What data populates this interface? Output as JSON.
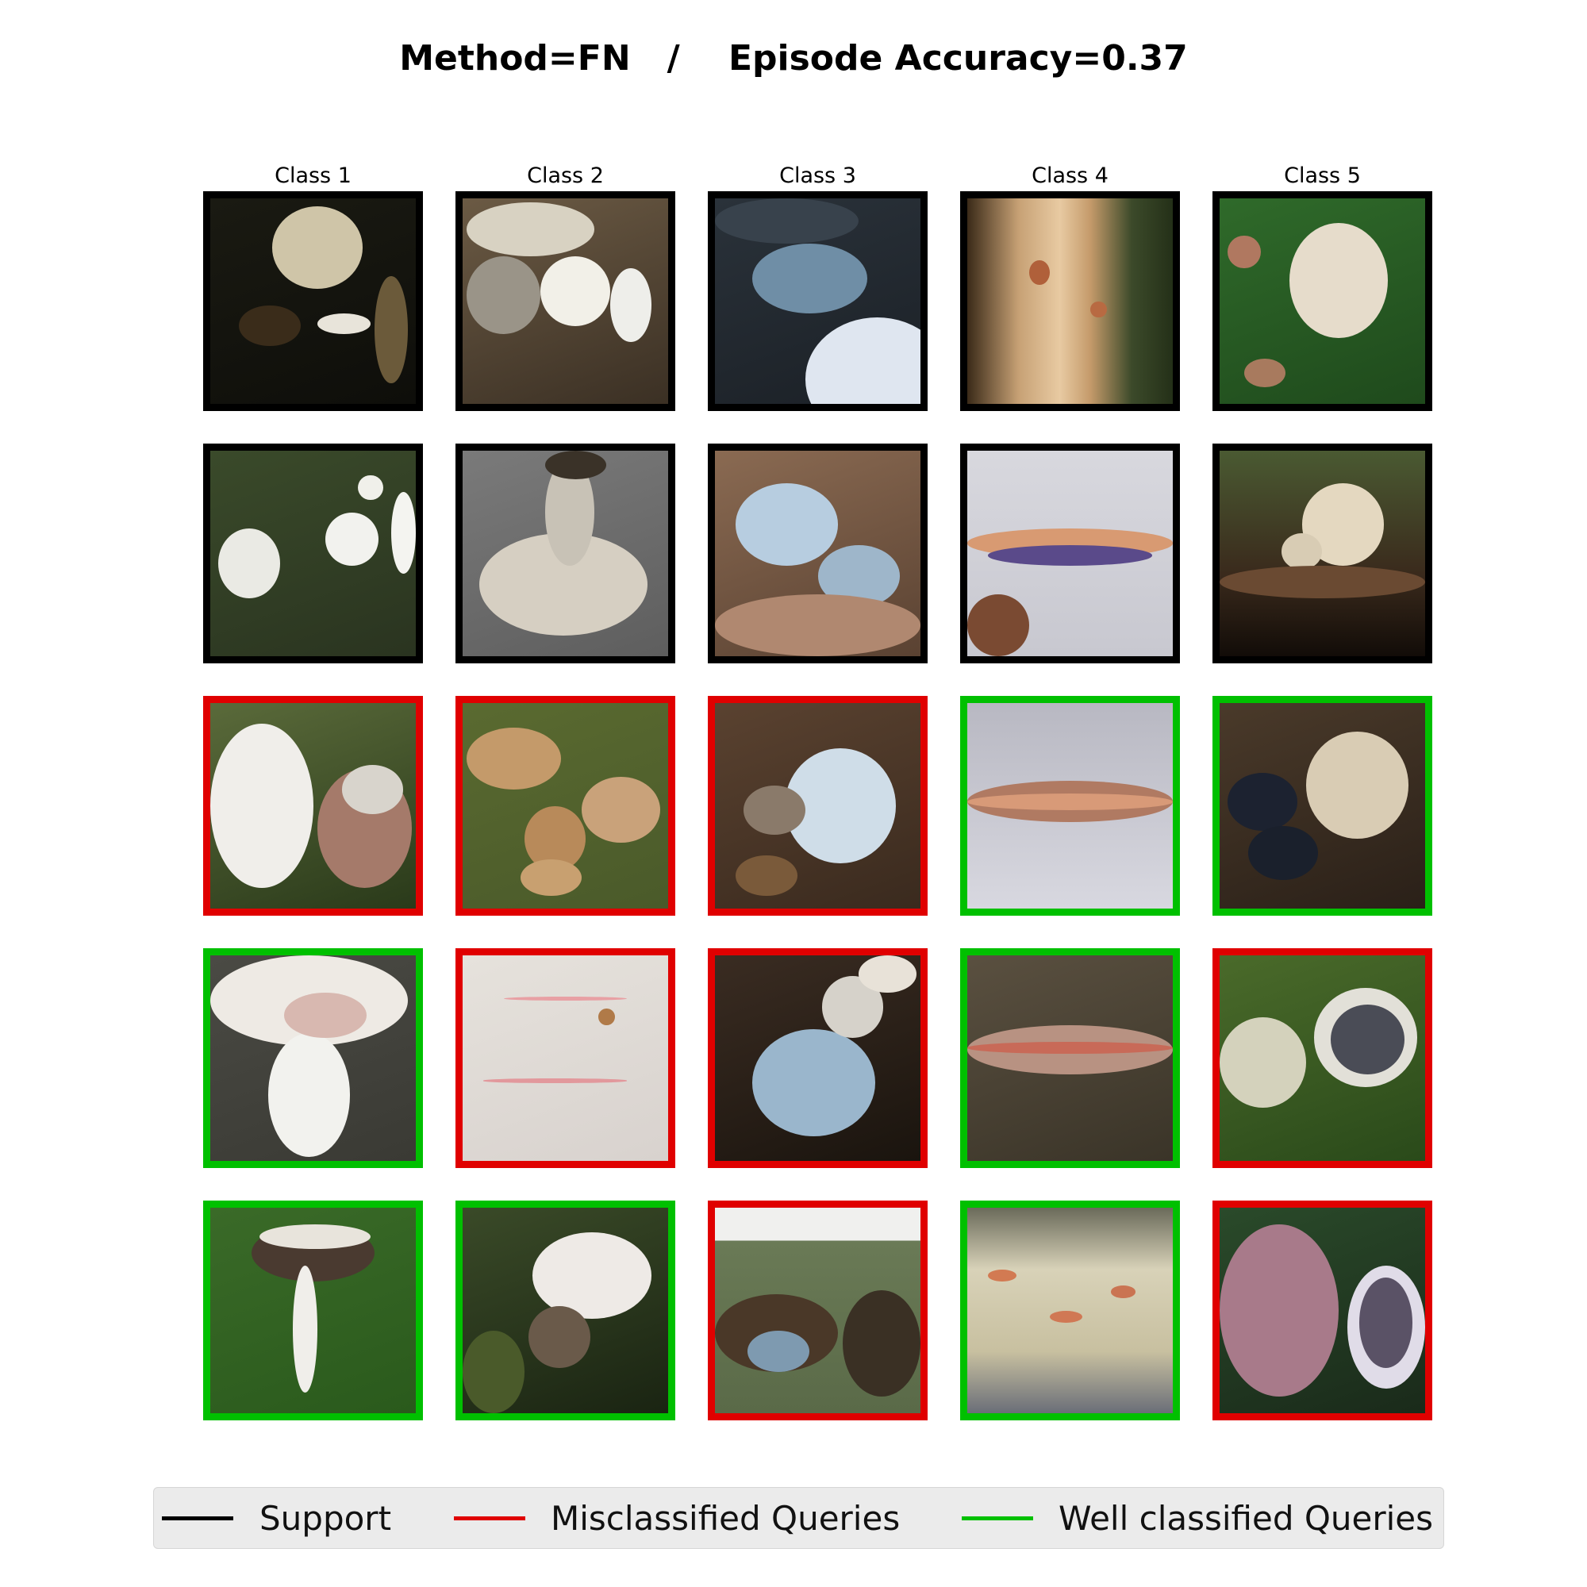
{
  "title": "Method=FN   /    Episode Accuracy=0.37",
  "columns": [
    "Class 1",
    "Class 2",
    "Class 3",
    "Class 4",
    "Class 5"
  ],
  "status_colors": {
    "support": "#000000",
    "misclassified": "#e00000",
    "well": "#00c000"
  },
  "grid": [
    [
      {
        "status": "support",
        "bg": "linear-gradient(160deg,#1a1a12 0%,#0e0e0a 100%)",
        "blobs": [
          [
            "30%",
            "4%",
            "44%",
            "40%",
            "#cfc5a8"
          ],
          [
            "14%",
            "52%",
            "30%",
            "20%",
            "#3a2c1a"
          ],
          [
            "52%",
            "56%",
            "26%",
            "10%",
            "#e8e4da"
          ],
          [
            "80%",
            "38%",
            "16%",
            "52%",
            "#6b5a3a"
          ]
        ]
      },
      {
        "status": "support",
        "bg": "linear-gradient(160deg,#6b5a44 0%,#3b3024 100%)",
        "blobs": [
          [
            "2%",
            "2%",
            "62%",
            "26%",
            "#d8d2c2"
          ],
          [
            "38%",
            "28%",
            "34%",
            "34%",
            "#f2f0e8"
          ],
          [
            "2%",
            "28%",
            "36%",
            "38%",
            "#9a9488"
          ],
          [
            "72%",
            "34%",
            "20%",
            "36%",
            "#eeeeea"
          ]
        ]
      },
      {
        "status": "support",
        "bg": "linear-gradient(160deg,#2a323a 0%,#1b2026 100%)",
        "blobs": [
          [
            "18%",
            "22%",
            "56%",
            "34%",
            "#6f8ea6"
          ],
          [
            "44%",
            "58%",
            "70%",
            "60%",
            "#dfe6f0"
          ],
          [
            "0%",
            "0%",
            "70%",
            "22%",
            "#38424c"
          ]
        ]
      },
      {
        "status": "support",
        "bg": "linear-gradient(90deg,#3a2a18 0%,#c7a175 25%,#e8caa2 45%,#c49a6a 60%,#3c4a2a 80%,#243018 100%)",
        "blobs": [
          [
            "30%",
            "30%",
            "10%",
            "12%",
            "#b0603a"
          ],
          [
            "60%",
            "50%",
            "8%",
            "8%",
            "#b86a42"
          ]
        ]
      },
      {
        "status": "support",
        "bg": "linear-gradient(160deg,#2f6a2a 0%,#1f4a1c 100%)",
        "blobs": [
          [
            "34%",
            "12%",
            "48%",
            "56%",
            "#e6dccb"
          ],
          [
            "4%",
            "18%",
            "16%",
            "16%",
            "#b07860"
          ],
          [
            "12%",
            "78%",
            "20%",
            "14%",
            "#a87a5e"
          ]
        ]
      }
    ],
    [
      {
        "status": "support",
        "bg": "linear-gradient(160deg,#3a4a2a 0%,#2a3420 100%)",
        "blobs": [
          [
            "56%",
            "30%",
            "26%",
            "26%",
            "#f2f2ee"
          ],
          [
            "4%",
            "38%",
            "30%",
            "34%",
            "#eaeae4"
          ],
          [
            "72%",
            "12%",
            "12%",
            "12%",
            "#f0f0ea"
          ],
          [
            "88%",
            "20%",
            "12%",
            "40%",
            "#f4f4f0"
          ]
        ]
      },
      {
        "status": "support",
        "bg": "linear-gradient(160deg,#7a7a7a 0%,#5e5e5e 100%)",
        "blobs": [
          [
            "8%",
            "40%",
            "82%",
            "50%",
            "#d6cfc2"
          ],
          [
            "40%",
            "4%",
            "24%",
            "52%",
            "#c8c2b6"
          ],
          [
            "40%",
            "0%",
            "30%",
            "14%",
            "#3a3228"
          ]
        ]
      },
      {
        "status": "support",
        "bg": "linear-gradient(160deg,#8a6a52 0%,#5a4232 100%)",
        "blobs": [
          [
            "10%",
            "16%",
            "50%",
            "40%",
            "#b7cde0"
          ],
          [
            "50%",
            "46%",
            "40%",
            "30%",
            "#9eb6ca"
          ],
          [
            "0%",
            "70%",
            "100%",
            "30%",
            "#b08870"
          ]
        ]
      },
      {
        "status": "support",
        "bg": "linear-gradient(180deg,#d8d8de 0%,#c8c8d0 100%)",
        "blobs": [
          [
            "0%",
            "38%",
            "100%",
            "14%",
            "#d89a72"
          ],
          [
            "10%",
            "46%",
            "80%",
            "10%",
            "#5a4a8a"
          ],
          [
            "0%",
            "70%",
            "30%",
            "30%",
            "#7a4a32"
          ]
        ]
      },
      {
        "status": "support",
        "bg": "linear-gradient(180deg,#4a5a32 0%,#3a2a1c 60%,#120c08 100%)",
        "blobs": [
          [
            "40%",
            "16%",
            "40%",
            "40%",
            "#e4d8c0"
          ],
          [
            "30%",
            "40%",
            "20%",
            "18%",
            "#d8ccb4"
          ],
          [
            "0%",
            "56%",
            "100%",
            "16%",
            "#6a4a32"
          ]
        ]
      }
    ],
    [
      {
        "status": "misclassified",
        "bg": "linear-gradient(160deg,#5a6a3a 0%,#2a3a1a 100%)",
        "blobs": [
          [
            "0%",
            "10%",
            "50%",
            "80%",
            "#f0eeea"
          ],
          [
            "52%",
            "32%",
            "46%",
            "58%",
            "#a57a6a"
          ],
          [
            "64%",
            "30%",
            "30%",
            "24%",
            "#d8d4cc"
          ]
        ]
      },
      {
        "status": "misclassified",
        "bg": "linear-gradient(160deg,#5a6a30 0%,#4a5a2a 100%)",
        "blobs": [
          [
            "2%",
            "12%",
            "46%",
            "30%",
            "#c49a6a"
          ],
          [
            "58%",
            "36%",
            "38%",
            "32%",
            "#c9a27a"
          ],
          [
            "30%",
            "50%",
            "30%",
            "32%",
            "#b88a5a"
          ],
          [
            "28%",
            "76%",
            "30%",
            "18%",
            "#c8a070"
          ]
        ]
      },
      {
        "status": "misclassified",
        "bg": "linear-gradient(160deg,#5a4230 0%,#3a2a1e 100%)",
        "blobs": [
          [
            "34%",
            "22%",
            "54%",
            "56%",
            "#cfdde8"
          ],
          [
            "14%",
            "40%",
            "30%",
            "24%",
            "#8a7a6a"
          ],
          [
            "10%",
            "74%",
            "30%",
            "20%",
            "#7a5a3a"
          ]
        ]
      },
      {
        "status": "well",
        "bg": "linear-gradient(180deg,#b8b8c2 0%,#d8d8e0 100%)",
        "blobs": [
          [
            "0%",
            "38%",
            "100%",
            "20%",
            "#b07a62"
          ],
          [
            "0%",
            "44%",
            "100%",
            "8%",
            "#d89a78"
          ]
        ]
      },
      {
        "status": "well",
        "bg": "linear-gradient(160deg,#4a3a2a 0%,#2a2018 100%)",
        "blobs": [
          [
            "42%",
            "14%",
            "50%",
            "52%",
            "#d9ccb4"
          ],
          [
            "4%",
            "34%",
            "34%",
            "28%",
            "#1c2230"
          ],
          [
            "14%",
            "60%",
            "34%",
            "26%",
            "#1a202c"
          ]
        ]
      }
    ],
    [
      {
        "status": "well",
        "bg": "linear-gradient(160deg,#4a4a44 0%,#3a3a34 100%)",
        "blobs": [
          [
            "0%",
            "0%",
            "96%",
            "44%",
            "#eeeae4"
          ],
          [
            "28%",
            "38%",
            "40%",
            "60%",
            "#f2f2ee"
          ],
          [
            "36%",
            "18%",
            "40%",
            "22%",
            "#d8b8b0"
          ]
        ]
      },
      {
        "status": "misclassified",
        "bg": "linear-gradient(160deg,#e6e2dc 0%,#d8d2ce 100%)",
        "blobs": [
          [
            "20%",
            "20%",
            "60%",
            "2%",
            "#e8a0a4"
          ],
          [
            "10%",
            "60%",
            "70%",
            "2%",
            "#e2989c"
          ],
          [
            "66%",
            "26%",
            "8%",
            "8%",
            "#b07a48"
          ]
        ]
      },
      {
        "status": "misclassified",
        "bg": "linear-gradient(160deg,#3a2c22 0%,#1a140e 100%)",
        "blobs": [
          [
            "18%",
            "36%",
            "60%",
            "52%",
            "#9ab6cc"
          ],
          [
            "52%",
            "10%",
            "30%",
            "30%",
            "#d6d2ca"
          ],
          [
            "70%",
            "0%",
            "28%",
            "18%",
            "#e8e2d8"
          ]
        ]
      },
      {
        "status": "well",
        "bg": "linear-gradient(160deg,#5a5040 0%,#3a3428 100%)",
        "blobs": [
          [
            "0%",
            "34%",
            "100%",
            "24%",
            "#b89282"
          ],
          [
            "0%",
            "42%",
            "100%",
            "6%",
            "#c86a58"
          ]
        ]
      },
      {
        "status": "misclassified",
        "bg": "linear-gradient(160deg,#4a6a2a 0%,#2a4a1a 100%)",
        "blobs": [
          [
            "46%",
            "16%",
            "50%",
            "48%",
            "#e2e0d8"
          ],
          [
            "54%",
            "24%",
            "36%",
            "34%",
            "#4a4c56"
          ],
          [
            "0%",
            "30%",
            "42%",
            "44%",
            "#d4d2bc"
          ]
        ]
      }
    ],
    [
      {
        "status": "well",
        "bg": "linear-gradient(160deg,#3a6a28 0%,#2a5a1c 100%)",
        "blobs": [
          [
            "20%",
            "8%",
            "60%",
            "28%",
            "#4a3a30"
          ],
          [
            "40%",
            "28%",
            "12%",
            "62%",
            "#f0eeea"
          ],
          [
            "24%",
            "8%",
            "54%",
            "12%",
            "#e8e4dc"
          ]
        ]
      },
      {
        "status": "well",
        "bg": "linear-gradient(160deg,#3a4a28 0%,#1a2412 100%)",
        "blobs": [
          [
            "34%",
            "12%",
            "58%",
            "42%",
            "#eeeae6"
          ],
          [
            "32%",
            "48%",
            "30%",
            "30%",
            "#6a5a4a"
          ],
          [
            "0%",
            "60%",
            "30%",
            "40%",
            "#4a5a2a"
          ]
        ]
      },
      {
        "status": "misclassified",
        "bg": "linear-gradient(180deg,#f0f0ee 0%,#f0f0ee 16%,#6a7a56 16%,#5a6a48 100%)",
        "blobs": [
          [
            "0%",
            "42%",
            "60%",
            "38%",
            "#4a3828"
          ],
          [
            "62%",
            "40%",
            "38%",
            "52%",
            "#3a3024"
          ],
          [
            "16%",
            "60%",
            "30%",
            "20%",
            "#7e9ab0"
          ]
        ]
      },
      {
        "status": "well",
        "bg": "linear-gradient(180deg,#6a6a5a 0%,#d8d2b8 30%,#c8c0a0 70%,#6a6e78 100%)",
        "blobs": [
          [
            "10%",
            "30%",
            "14%",
            "6%",
            "#d27a52"
          ],
          [
            "40%",
            "50%",
            "16%",
            "6%",
            "#d07854"
          ],
          [
            "70%",
            "38%",
            "12%",
            "6%",
            "#ca7452"
          ]
        ]
      },
      {
        "status": "misclassified",
        "bg": "linear-gradient(160deg,#2a4a2a 0%,#1a2a1a 100%)",
        "blobs": [
          [
            "0%",
            "8%",
            "58%",
            "84%",
            "#a87a8a"
          ],
          [
            "62%",
            "28%",
            "38%",
            "60%",
            "#e0dce8"
          ],
          [
            "68%",
            "34%",
            "26%",
            "44%",
            "#5a5266"
          ]
        ]
      }
    ]
  ],
  "legend": [
    {
      "label": "Support",
      "color": "#000000"
    },
    {
      "label": "Misclassified Queries",
      "color": "#e00000"
    },
    {
      "label": "Well classified Queries",
      "color": "#00c000"
    }
  ]
}
